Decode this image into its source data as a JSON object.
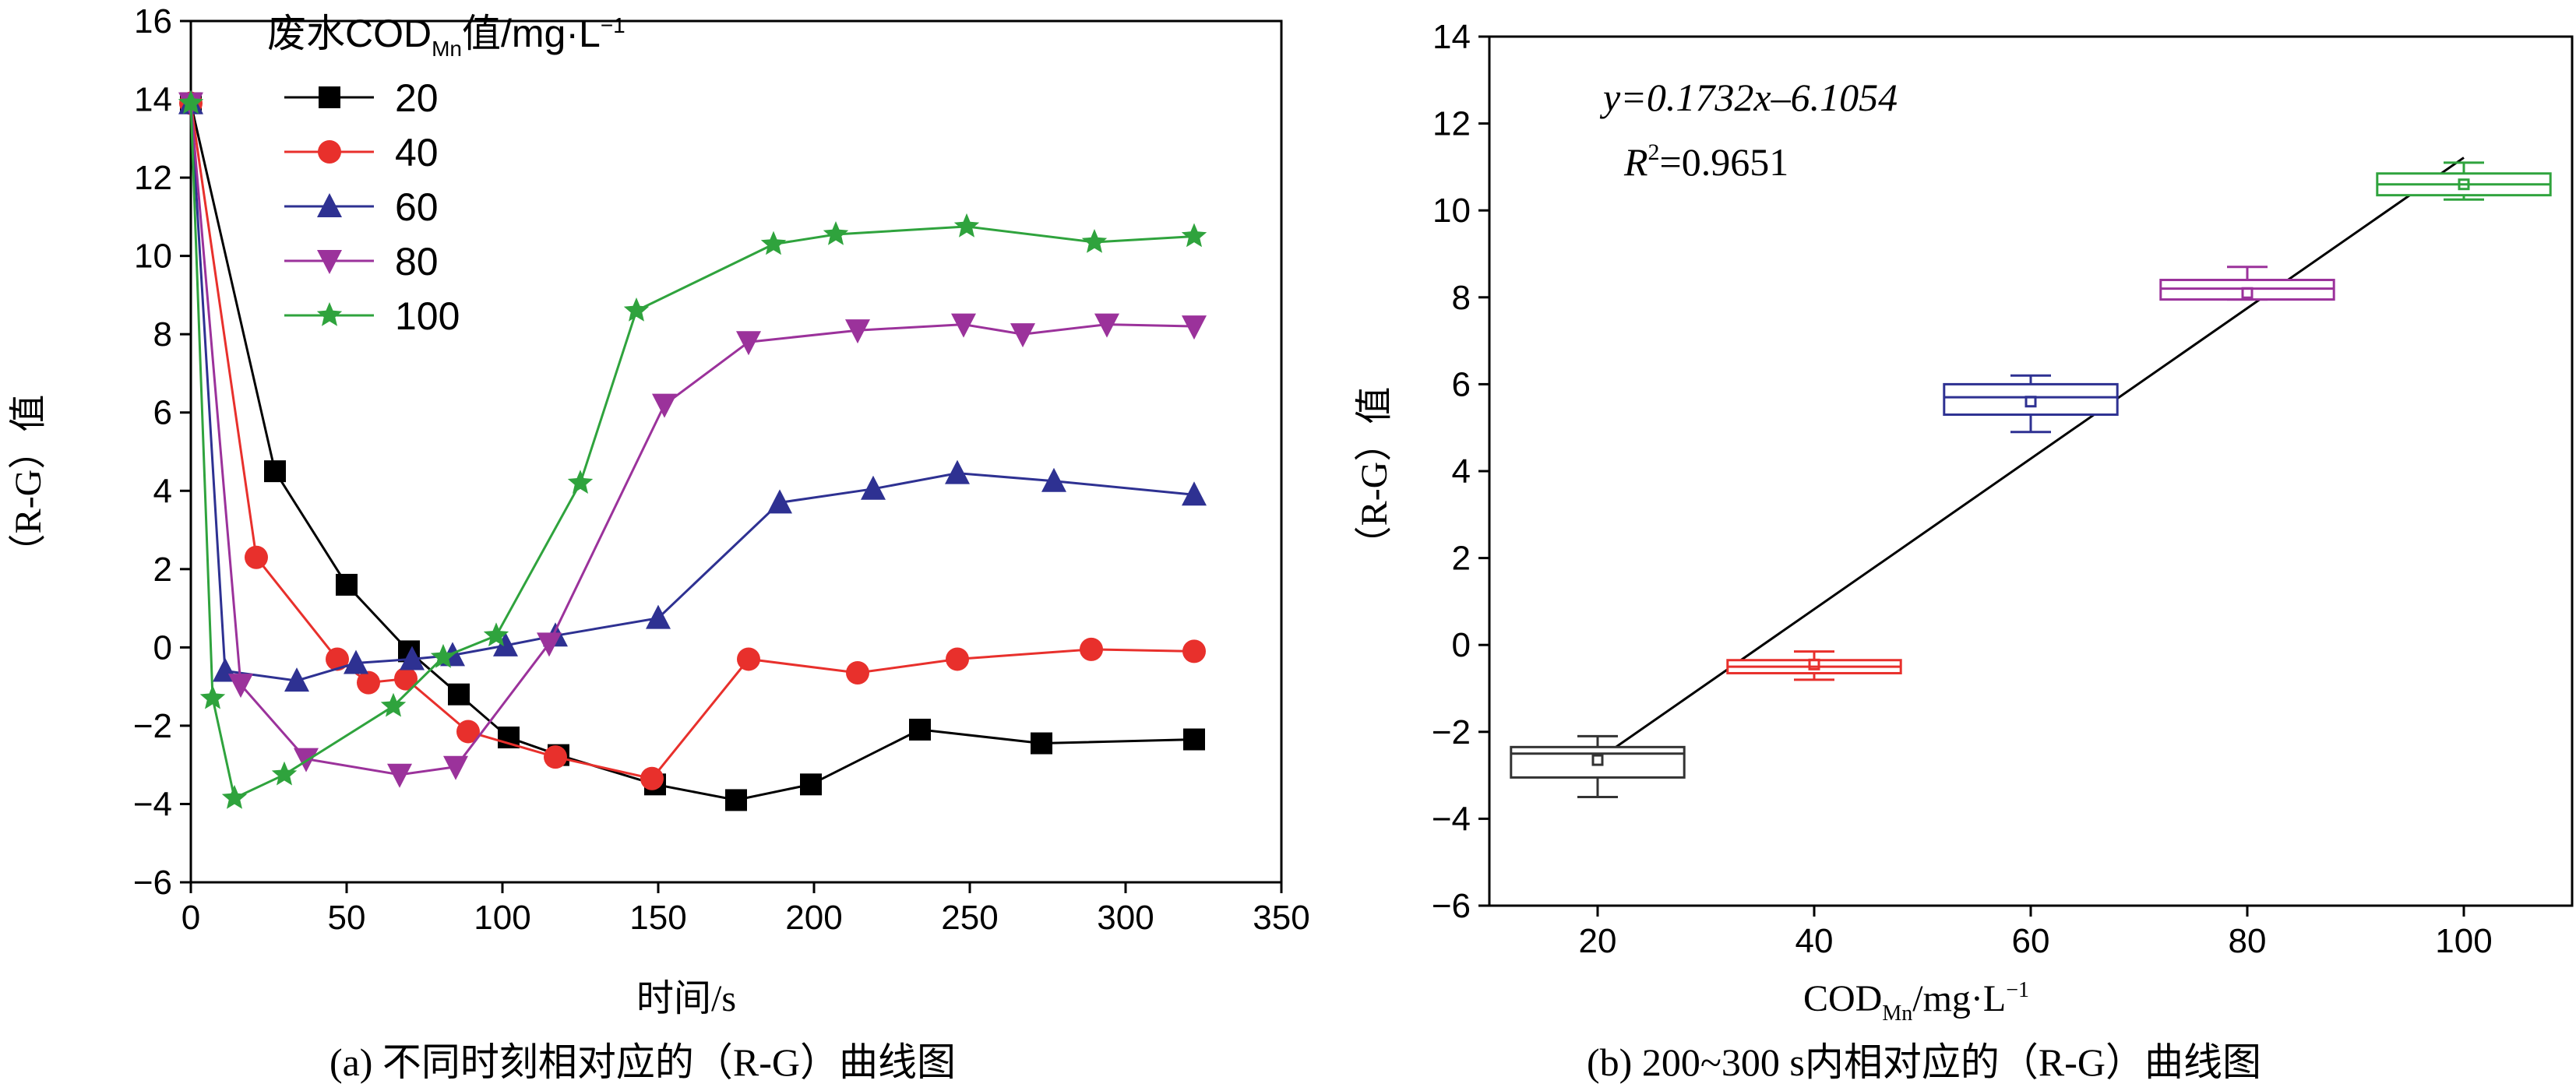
{
  "chart_data": [
    {
      "type": "line",
      "caption": "(a) 不同时刻相对应的（R-G）曲线图",
      "xlabel": "时间/s",
      "ylabel": "（R-G）值",
      "xlim": [
        0,
        350
      ],
      "ylim": [
        -6,
        16
      ],
      "xticks": [
        0,
        50,
        100,
        150,
        200,
        250,
        300,
        350
      ],
      "yticks": [
        -6,
        -4,
        -2,
        0,
        2,
        4,
        6,
        8,
        10,
        12,
        14,
        16
      ],
      "legend_title": "废水COD",
      "legend_title_sub": "Mn",
      "legend_title_suffix": "值/mg·L",
      "legend_title_sup": "−1",
      "legend_position": "top-left",
      "series": [
        {
          "name": "20",
          "color": "#000000",
          "marker": "square",
          "x": [
            0,
            27,
            50,
            70,
            86,
            102,
            118,
            149,
            175,
            199,
            234,
            273,
            322
          ],
          "y": [
            13.9,
            4.5,
            1.6,
            -0.1,
            -1.2,
            -2.3,
            -2.75,
            -3.5,
            -3.9,
            -3.5,
            -2.1,
            -2.45,
            -2.35
          ]
        },
        {
          "name": "40",
          "color": "#e8302c",
          "marker": "circle",
          "x": [
            0,
            21,
            47,
            57,
            69,
            89,
            117,
            148,
            179,
            214,
            246,
            289,
            322
          ],
          "y": [
            13.9,
            2.3,
            -0.3,
            -0.9,
            -0.8,
            -2.15,
            -2.8,
            -3.35,
            -0.3,
            -0.65,
            -0.3,
            -0.05,
            -0.1
          ]
        },
        {
          "name": "60",
          "color": "#2e3192",
          "marker": "triangle-up",
          "x": [
            0,
            11,
            34,
            53,
            71,
            84,
            101,
            117,
            150,
            189,
            219,
            246,
            277,
            322
          ],
          "y": [
            13.9,
            -0.6,
            -0.85,
            -0.4,
            -0.3,
            -0.2,
            0.05,
            0.3,
            0.75,
            3.7,
            4.05,
            4.45,
            4.25,
            3.9
          ]
        },
        {
          "name": "80",
          "color": "#9b329b",
          "marker": "triangle-down",
          "x": [
            0,
            16,
            37,
            67,
            85,
            115,
            152,
            179,
            214,
            248,
            267,
            294,
            322
          ],
          "y": [
            13.9,
            -0.95,
            -2.85,
            -3.25,
            -3.05,
            0.1,
            6.2,
            7.8,
            8.1,
            8.25,
            8.0,
            8.25,
            8.2
          ]
        },
        {
          "name": "100",
          "color": "#2fa33d",
          "marker": "star",
          "x": [
            0,
            7,
            14,
            30,
            65,
            81,
            98,
            125,
            143,
            187,
            207,
            249,
            290,
            322
          ],
          "y": [
            13.9,
            -1.3,
            -3.85,
            -3.25,
            -1.5,
            -0.25,
            0.3,
            4.2,
            8.6,
            10.3,
            10.55,
            10.75,
            10.35,
            10.5
          ]
        }
      ]
    },
    {
      "type": "box",
      "caption": "(b) 200~300 s内相对应的（R-G）曲线图",
      "xlabel": "COD",
      "xlabel_sub": "Mn",
      "xlabel_suffix": "/mg·L",
      "xlabel_sup": "−1",
      "ylabel": "（R-G）值",
      "xlim": [
        10,
        110
      ],
      "ylim": [
        -6,
        14
      ],
      "xticks": [
        20,
        40,
        60,
        80,
        100
      ],
      "yticks": [
        -6,
        -4,
        -2,
        0,
        2,
        4,
        6,
        8,
        10,
        12,
        14
      ],
      "equation": "y=0.1732x–6.1054",
      "r2_label": "R",
      "r2_sup": "2",
      "r2_value": "=0.9651",
      "fit": {
        "slope": 0.1732,
        "intercept": -6.1054,
        "x_range": [
          20,
          100
        ]
      },
      "boxes": [
        {
          "x": 20,
          "whisker_low": -3.5,
          "q1": -3.05,
          "median": -2.5,
          "q3": -2.35,
          "whisker_high": -2.1,
          "mean": -2.65,
          "color": "#333333"
        },
        {
          "x": 40,
          "whisker_low": -0.8,
          "q1": -0.65,
          "median": -0.5,
          "q3": -0.35,
          "whisker_high": -0.15,
          "mean": -0.45,
          "color": "#e8302c"
        },
        {
          "x": 60,
          "whisker_low": 4.9,
          "q1": 5.3,
          "median": 5.7,
          "q3": 6.0,
          "whisker_high": 6.2,
          "mean": 5.6,
          "color": "#2e3192"
        },
        {
          "x": 80,
          "whisker_low": 7.95,
          "q1": 7.95,
          "median": 8.2,
          "q3": 8.4,
          "whisker_high": 8.7,
          "mean": 8.1,
          "color": "#9b329b"
        },
        {
          "x": 100,
          "whisker_low": 10.25,
          "q1": 10.35,
          "median": 10.6,
          "q3": 10.85,
          "whisker_high": 11.1,
          "mean": 10.6,
          "color": "#2fa33d"
        }
      ]
    }
  ]
}
